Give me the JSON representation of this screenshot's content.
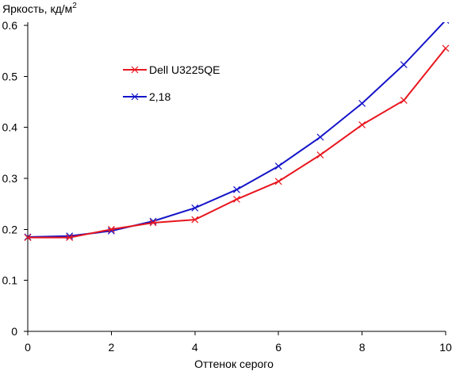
{
  "chart_data": {
    "type": "line",
    "title": "",
    "ylabel": "Яркость, кд/м",
    "ylabel_superscript": "2",
    "xlabel": "Оттенок серого",
    "xlim": [
      0,
      10
    ],
    "ylim": [
      0,
      0.6
    ],
    "grid": false,
    "legend_position": "top-left inside",
    "x_ticks": [
      "0",
      "2",
      "4",
      "6",
      "8",
      "10"
    ],
    "y_ticks": [
      "0",
      "0.1",
      "0.2",
      "0.3",
      "0.4",
      "0.5",
      "0.6"
    ],
    "x": [
      0,
      1,
      2,
      3,
      4,
      5,
      6,
      7,
      8,
      9,
      10
    ],
    "series": [
      {
        "name": "Dell U3225QE",
        "color": "#e8161e",
        "marker": "x",
        "values": [
          0.184,
          0.184,
          0.2,
          0.213,
          0.219,
          0.259,
          0.294,
          0.346,
          0.405,
          0.453,
          0.555
        ]
      },
      {
        "name": "2,18",
        "color": "#1414c8",
        "marker": "x",
        "values": [
          0.185,
          0.187,
          0.197,
          0.216,
          0.242,
          0.278,
          0.324,
          0.381,
          0.447,
          0.523,
          0.61
        ]
      }
    ]
  }
}
